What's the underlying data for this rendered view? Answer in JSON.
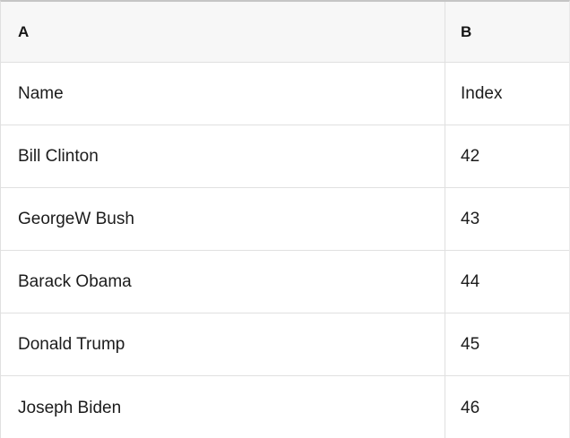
{
  "table": {
    "column_headers": [
      "A",
      "B"
    ],
    "rows": [
      [
        "Name",
        "Index"
      ],
      [
        "Bill Clinton",
        "42"
      ],
      [
        "GeorgeW Bush",
        "43"
      ],
      [
        "Barack Obama",
        "44"
      ],
      [
        "Donald Trump",
        "45"
      ],
      [
        "Joseph Biden",
        "46"
      ]
    ]
  },
  "colors": {
    "header_background": "#f7f7f7",
    "grid_line": "#e0e0e0",
    "top_edge": "#c5c5c5",
    "text": "#1c1c1c",
    "row_background": "#ffffff"
  }
}
